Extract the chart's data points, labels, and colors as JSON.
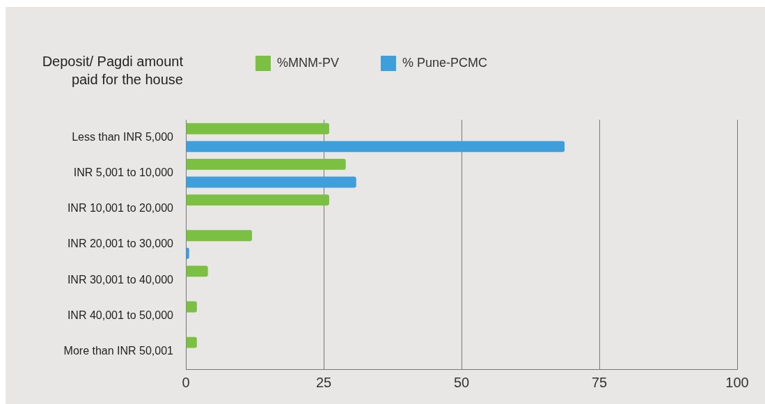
{
  "chart_data": {
    "type": "bar",
    "orientation": "horizontal",
    "ylabel": "Deposit/ Pagdi amount paid for the house",
    "categories": [
      "Less than INR 5,000",
      "INR 5,001 to 10,000",
      "INR 10,001 to 20,000",
      "INR 20,001 to 30,000",
      "INR 30,001 to 40,000",
      "INR 40,001 to 50,000",
      "More than INR 50,001"
    ],
    "series": [
      {
        "name": "%MNM-PV",
        "color": "#7bc043",
        "values": [
          26,
          29,
          26,
          12,
          4,
          2,
          2
        ]
      },
      {
        "name": "% Pune-PCMC",
        "color": "#3e9fdb",
        "values": [
          68.7,
          30.9,
          0,
          0.6,
          0,
          0,
          0
        ]
      }
    ],
    "xlim": [
      0,
      100
    ],
    "xticks": [
      0,
      25,
      50,
      75,
      100
    ],
    "grid": "x",
    "legend": "top"
  }
}
